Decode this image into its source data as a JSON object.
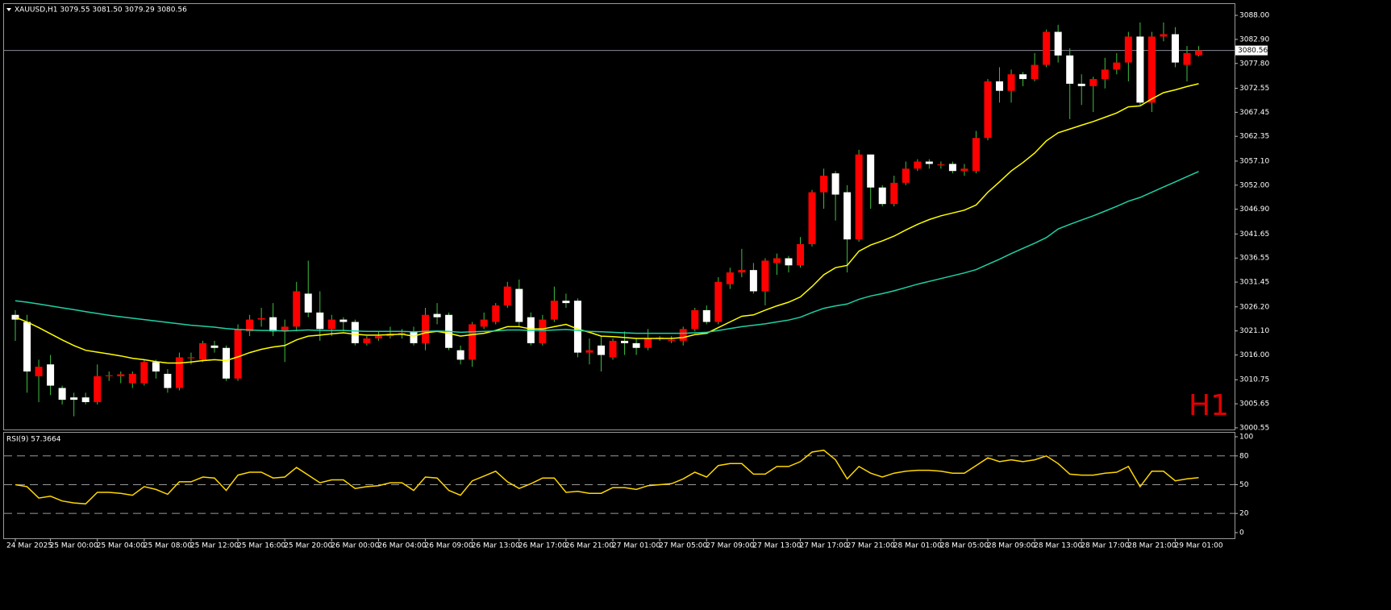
{
  "chart_data": [
    {
      "type": "candlestick",
      "title": "XAUUSD,H1  3079.55 3081.50 3079.29 3080.56",
      "watermark": "H1",
      "categories": [
        "24 Mar 2025",
        null,
        null,
        "25 Mar 00:00",
        null,
        null,
        null,
        "25 Mar 04:00",
        null,
        null,
        null,
        "25 Mar 08:00",
        null,
        null,
        null,
        "25 Mar 12:00",
        null,
        null,
        null,
        "25 Mar 16:00",
        null,
        null,
        null,
        "25 Mar 20:00",
        null,
        null,
        null,
        "26 Mar 00:00",
        null,
        null,
        null,
        "26 Mar 04:00",
        null,
        null,
        null,
        "26 Mar 09:00",
        null,
        null,
        null,
        "26 Mar 13:00",
        null,
        null,
        null,
        "26 Mar 17:00",
        null,
        null,
        null,
        "26 Mar 21:00",
        null,
        null,
        null,
        "27 Mar 01:00",
        null,
        null,
        null,
        "27 Mar 05:00",
        null,
        null,
        null,
        "27 Mar 09:00",
        null,
        null,
        null,
        "27 Mar 13:00",
        null,
        null,
        null,
        "27 Mar 17:00",
        null,
        null,
        null,
        "27 Mar 21:00",
        null,
        null,
        null,
        "28 Mar 01:00",
        null,
        null,
        null,
        "28 Mar 05:00",
        null,
        null,
        null,
        "28 Mar 09:00",
        null,
        null,
        null,
        "28 Mar 13:00",
        null,
        null,
        null,
        "28 Mar 17:00",
        null,
        null,
        null,
        "28 Mar 21:00",
        null,
        null,
        null,
        "29 Mar 01:00",
        null,
        null
      ],
      "open": [
        3024.5,
        3023,
        3011.5,
        3014,
        3009,
        3007,
        3007,
        3006,
        3011.5,
        3011.5,
        3010,
        3010,
        3014.5,
        3012,
        3009,
        3015.3,
        3015,
        3018,
        3017.5,
        3011,
        3021,
        3023.5,
        3024,
        3021,
        3022,
        3029,
        3025,
        3021.5,
        3023.5,
        3023,
        3018.5,
        3019.5,
        3020,
        3020.5,
        3021,
        3018.5,
        3024.7,
        3024.5,
        3017,
        3015,
        3022,
        3023,
        3026.5,
        3030,
        3024,
        3018.5,
        3023.5,
        3027.5,
        3027.5,
        3016.5,
        3018,
        3015.5,
        3019,
        3018.5,
        3017.5,
        3019.5,
        3019,
        3019,
        3021.5,
        3025.5,
        3023,
        3031,
        3033.5,
        3034,
        3029.5,
        3035.5,
        3036.5,
        3035,
        3039.5,
        3050.5,
        3054.5,
        3050.5,
        3040.5,
        3058.5,
        3051.5,
        3048,
        3052.5,
        3055.5,
        3057,
        3056.2,
        3056.5,
        3055,
        3055,
        3062,
        3074,
        3072,
        3075.5,
        3074.5,
        3077.5,
        3084.5,
        3079.5,
        3073.5,
        3073,
        3074.5,
        3076.5,
        3078,
        3083.5,
        3069.5,
        3083.5,
        3084,
        3077.5,
        3079.55
      ],
      "high": [
        3025.5,
        3024.5,
        3015,
        3016,
        3009.5,
        3008,
        3008,
        3014,
        3012.5,
        3012.5,
        3012.5,
        3015,
        3015,
        3013,
        3016.5,
        3016.5,
        3019,
        3019,
        3018,
        3022.5,
        3024.5,
        3026,
        3027,
        3023.5,
        3031.5,
        3036,
        3029.5,
        3024.5,
        3024,
        3023.5,
        3020,
        3021,
        3022,
        3021.5,
        3022,
        3026,
        3027,
        3025,
        3018,
        3023,
        3025,
        3027,
        3031.5,
        3032,
        3025,
        3024.5,
        3030.5,
        3029,
        3028,
        3019.5,
        3020,
        3019.5,
        3021,
        3019.5,
        3021.5,
        3020,
        3020,
        3022,
        3026,
        3026.5,
        3032.5,
        3034.5,
        3038.5,
        3035.5,
        3036.5,
        3037.5,
        3037,
        3041,
        3051,
        3055.5,
        3055,
        3052,
        3059.5,
        3058.5,
        3052,
        3054,
        3057,
        3057.5,
        3057.5,
        3057,
        3057,
        3056.5,
        3063.5,
        3074.5,
        3077,
        3076.5,
        3076,
        3080,
        3085,
        3086,
        3081,
        3075.5,
        3075,
        3079,
        3080,
        3084.5,
        3086.5,
        3084.5,
        3086.5,
        3085.5,
        3081.5,
        3081.5
      ],
      "low": [
        3019,
        3008,
        3006,
        3007.5,
        3005.5,
        3003,
        3005.5,
        3005.5,
        3010.5,
        3010,
        3009,
        3009.5,
        3011,
        3008,
        3008.5,
        3014,
        3014.5,
        3016.5,
        3010.5,
        3010.5,
        3020,
        3022,
        3020,
        3014.5,
        3021,
        3024,
        3019,
        3020,
        3021,
        3018,
        3018,
        3019,
        3019.5,
        3019.5,
        3018,
        3017,
        3022.5,
        3017,
        3014,
        3013.5,
        3021.5,
        3022.5,
        3026,
        3022,
        3018,
        3018,
        3023,
        3026,
        3015.5,
        3014,
        3012.5,
        3015,
        3016,
        3016,
        3017,
        3019,
        3018.5,
        3018,
        3021,
        3022.5,
        3022.5,
        3030,
        3032.5,
        3029,
        3026.5,
        3033,
        3033.5,
        3034.5,
        3039,
        3047,
        3044.5,
        3033.5,
        3040,
        3047,
        3047.5,
        3047.5,
        3052,
        3055,
        3055.5,
        3055.5,
        3054.5,
        3054,
        3054.5,
        3061.5,
        3069.5,
        3069.5,
        3073,
        3074,
        3077,
        3078,
        3066,
        3069,
        3067.5,
        3072.5,
        3075.5,
        3074,
        3069,
        3067.5,
        3082.5,
        3077,
        3074,
        3079.29
      ],
      "close": [
        3023.5,
        3012.5,
        3013.5,
        3009.5,
        3006.5,
        3006.5,
        3006,
        3011.5,
        3011.7,
        3011.9,
        3012,
        3014.5,
        3012.5,
        3009,
        3015.5,
        3015.5,
        3018.5,
        3017.5,
        3011,
        3021.5,
        3023.5,
        3023.8,
        3021,
        3022,
        3029.5,
        3025,
        3021.5,
        3023.5,
        3023,
        3018.5,
        3019.5,
        3020,
        3020.5,
        3020.7,
        3018.5,
        3024.5,
        3024,
        3017.5,
        3015,
        3022.5,
        3023.5,
        3026.5,
        3030.5,
        3023,
        3018.5,
        3023.5,
        3027.5,
        3027,
        3016.5,
        3017,
        3016,
        3019,
        3018.5,
        3017.5,
        3019.5,
        3019.7,
        3019.2,
        3021.5,
        3025.5,
        3023,
        3031.5,
        3033.5,
        3034,
        3029.5,
        3036,
        3036.5,
        3035,
        3039.5,
        3050.5,
        3054,
        3050,
        3040.5,
        3058.5,
        3051.5,
        3048,
        3052.5,
        3055.5,
        3057,
        3056.5,
        3056.4,
        3055,
        3055.5,
        3062,
        3074,
        3072,
        3075.5,
        3074.5,
        3077.5,
        3084.5,
        3079.5,
        3073.5,
        3073,
        3074.5,
        3076.5,
        3078,
        3083.5,
        3069.5,
        3083.5,
        3084,
        3078,
        3080,
        3080.56
      ],
      "up_color": "#ff0000",
      "down_color": "#ffffff",
      "wick_color": "#3fbf3f",
      "series": [
        {
          "color": "#ffff00",
          "values": [
            3024,
            3023,
            3021.8,
            3020.5,
            3019.2,
            3018,
            3017,
            3016.6,
            3016.2,
            3015.8,
            3015.3,
            3015,
            3014.6,
            3014.3,
            3014.3,
            3014.5,
            3014.8,
            3015,
            3014.8,
            3015.6,
            3016.5,
            3017.2,
            3017.7,
            3018,
            3019.2,
            3020,
            3020.2,
            3020.5,
            3020.7,
            3020.4,
            3020.2,
            3020.2,
            3020.3,
            3020.4,
            3020,
            3020.7,
            3021,
            3020.6,
            3020,
            3020.3,
            3020.6,
            3021.2,
            3022,
            3022,
            3021.5,
            3021.5,
            3022,
            3022.5,
            3021.5,
            3020.8,
            3020,
            3019.9,
            3019.7,
            3019.5,
            3019.5,
            3019.5,
            3019.5,
            3019.7,
            3020.3,
            3020.6,
            3021.8,
            3023,
            3024.2,
            3024.5,
            3025.5,
            3026.4,
            3027.2,
            3028.3,
            3030.5,
            3033,
            3034.5,
            3035,
            3038,
            3039.3,
            3040.2,
            3041.2,
            3042.5,
            3043.7,
            3044.7,
            3045.5,
            3046.1,
            3046.7,
            3047.8,
            3050.5,
            3052.7,
            3055,
            3056.8,
            3058.8,
            3061.4,
            3063.1,
            3063.9,
            3064.7,
            3065.5,
            3066.4,
            3067.3,
            3068.6,
            3068.8,
            3070.3,
            3071.6,
            3072.2,
            3072.9,
            3073.5
          ]
        },
        {
          "color": "#1fd1a4",
          "values": [
            3027.5,
            3027.2,
            3026.8,
            3026.4,
            3026,
            3025.6,
            3025.2,
            3024.8,
            3024.4,
            3024.1,
            3023.8,
            3023.5,
            3023.2,
            3022.9,
            3022.6,
            3022.3,
            3022.1,
            3021.9,
            3021.6,
            3021.4,
            3021.3,
            3021.2,
            3021.2,
            3021.1,
            3021.2,
            3021.3,
            3021.2,
            3021.2,
            3021.2,
            3021.1,
            3021,
            3021,
            3021,
            3021,
            3020.9,
            3021,
            3021.1,
            3021,
            3020.8,
            3020.9,
            3021,
            3021.1,
            3021.3,
            3021.3,
            3021.2,
            3021.2,
            3021.3,
            3021.4,
            3021.2,
            3021,
            3020.9,
            3020.8,
            3020.7,
            3020.6,
            3020.6,
            3020.6,
            3020.6,
            3020.6,
            3020.7,
            3020.8,
            3021.2,
            3021.6,
            3022,
            3022.3,
            3022.6,
            3023,
            3023.4,
            3024,
            3025,
            3025.9,
            3026.4,
            3026.8,
            3027.8,
            3028.5,
            3029,
            3029.6,
            3030.3,
            3031,
            3031.6,
            3032.2,
            3032.8,
            3033.4,
            3034.1,
            3035.2,
            3036.3,
            3037.5,
            3038.6,
            3039.7,
            3040.9,
            3042.7,
            3043.7,
            3044.6,
            3045.5,
            3046.5,
            3047.5,
            3048.6,
            3049.4,
            3050.5,
            3051.6,
            3052.7,
            3053.8,
            3054.9
          ]
        }
      ],
      "current_price": 3080.56,
      "ylim": [
        3000.2,
        3090.4
      ],
      "yticks": [
        {
          "value": 3088,
          "label": "3088.00"
        },
        {
          "value": 3082.9,
          "label": "3082.90"
        },
        {
          "value": 3077.8,
          "label": "3077.80"
        },
        {
          "value": 3072.55,
          "label": "3072.55"
        },
        {
          "value": 3067.45,
          "label": "3067.45"
        },
        {
          "value": 3062.35,
          "label": "3062.35"
        },
        {
          "value": 3057.1,
          "label": "3057.10"
        },
        {
          "value": 3052,
          "label": "3052.00"
        },
        {
          "value": 3046.9,
          "label": "3046.90"
        },
        {
          "value": 3041.65,
          "label": "3041.65"
        },
        {
          "value": 3036.55,
          "label": "3036.55"
        },
        {
          "value": 3031.45,
          "label": "3031.45"
        },
        {
          "value": 3026.2,
          "label": "3026.20"
        },
        {
          "value": 3021.1,
          "label": "3021.10"
        },
        {
          "value": 3016,
          "label": "3016.00"
        },
        {
          "value": 3010.75,
          "label": "3010.75"
        },
        {
          "value": 3005.65,
          "label": "3005.65"
        },
        {
          "value": 3000.55,
          "label": "3000.55"
        }
      ]
    },
    {
      "type": "line",
      "title": "RSI(9) 57.3664",
      "series": [
        {
          "color": "#ffd700",
          "values": [
            50,
            48,
            36,
            38,
            33,
            31,
            30,
            42,
            42,
            41,
            39,
            48,
            45,
            40,
            53,
            53,
            58,
            57,
            44,
            60,
            63,
            63,
            57,
            58,
            68,
            60,
            52,
            55,
            55,
            46,
            48,
            49,
            52,
            52,
            44,
            58,
            57,
            44,
            39,
            54,
            59,
            64,
            53,
            46,
            51,
            57,
            57,
            42,
            43,
            41,
            41,
            47,
            47,
            45,
            49,
            50,
            51,
            56,
            63,
            58,
            70,
            72,
            72,
            61,
            61,
            69,
            69,
            74,
            84,
            86,
            76,
            56,
            69,
            62,
            58,
            62,
            64,
            65,
            65,
            64,
            62,
            62,
            70,
            78,
            74,
            76,
            74,
            76,
            80,
            72,
            61,
            60,
            60,
            62,
            63,
            69,
            48,
            64,
            64,
            54,
            56,
            57.3664
          ]
        }
      ],
      "ylim": [
        -5.9,
        104.2
      ],
      "yticks": [
        100,
        80,
        50,
        20,
        0
      ],
      "levels": [
        80,
        50,
        20
      ]
    }
  ]
}
